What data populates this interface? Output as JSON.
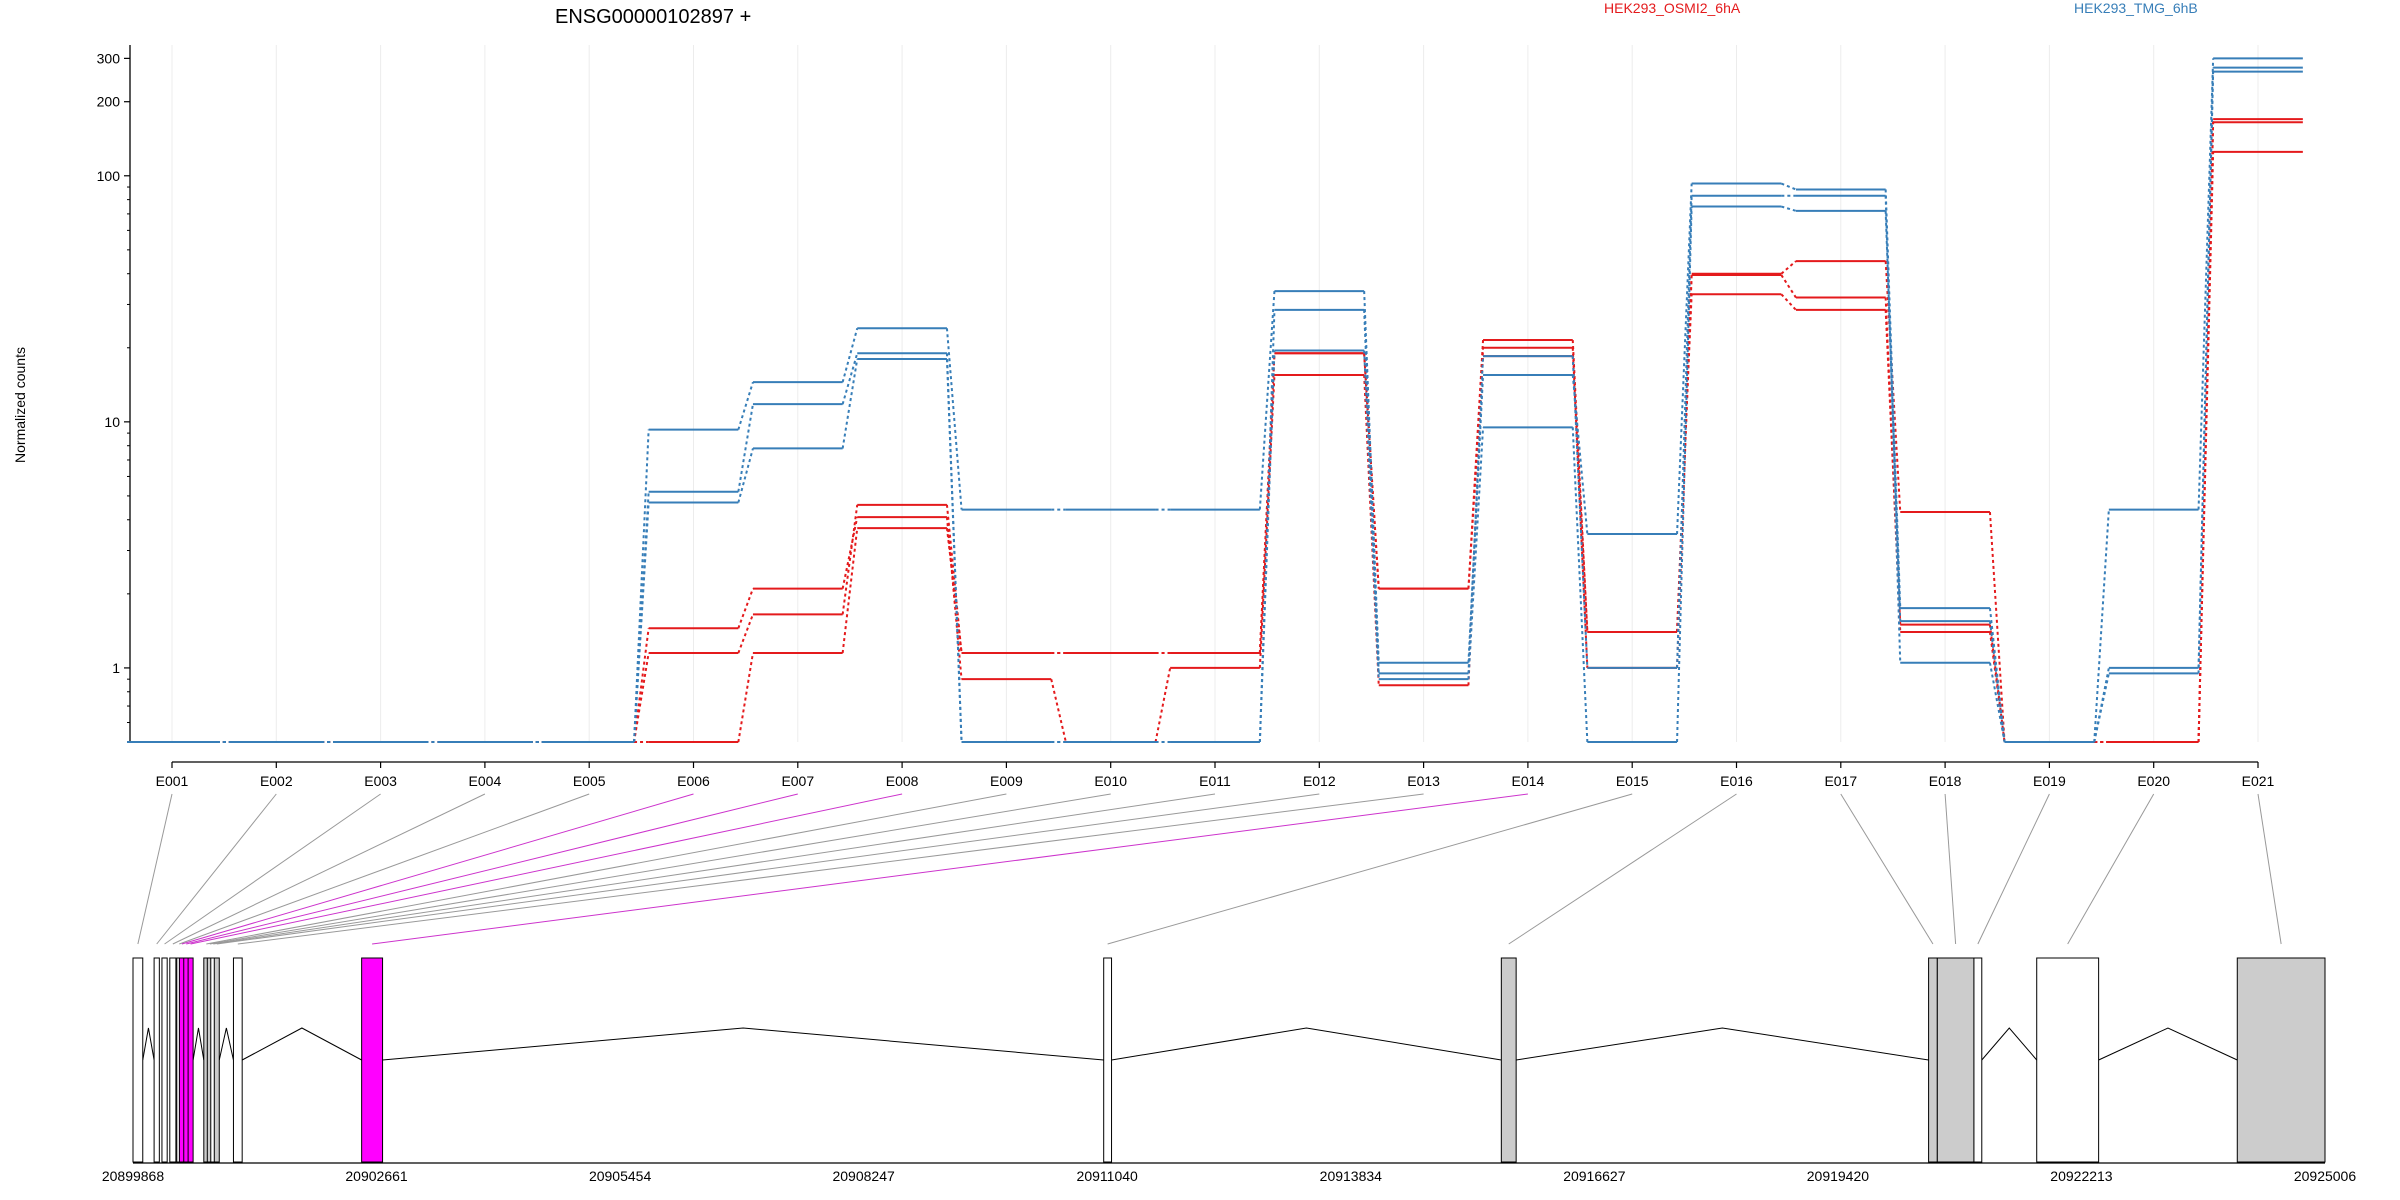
{
  "chart_data": {
    "type": "line",
    "title": "ENSG00000102897 +",
    "ylabel": "Normalized counts",
    "y_scale": "log",
    "y_ticks": [
      1,
      10,
      100,
      200,
      300
    ],
    "y_tick_labels": [
      "1",
      "10",
      "100",
      "200",
      "300"
    ],
    "ylim": [
      0.5,
      340
    ],
    "legend_placement": "top",
    "grid": true,
    "categories": [
      "E001",
      "E002",
      "E003",
      "E004",
      "E005",
      "E006",
      "E007",
      "E008",
      "E009",
      "E010",
      "E011",
      "E012",
      "E013",
      "E014",
      "E015",
      "E016",
      "E017",
      "E018",
      "E019",
      "E020",
      "E021"
    ],
    "series": [
      {
        "name": "HEK293_OSMI2_6hA",
        "color": "#e41a1c",
        "values": [
          0.5,
          0.5,
          0.5,
          0.5,
          0.5,
          1.15,
          1.65,
          4.6,
          1.15,
          1.15,
          1.15,
          19,
          2.1,
          21.5,
          1.4,
          40,
          45,
          4.3,
          0.5,
          0.5,
          170
        ]
      },
      {
        "name": "",
        "color": "#e41a1c",
        "values": [
          0.5,
          0.5,
          0.5,
          0.5,
          0.5,
          1.45,
          2.1,
          4.1,
          0.9,
          0.5,
          1.0,
          15.5,
          0.85,
          20,
          1.0,
          39.5,
          32,
          1.4,
          0.5,
          0.5,
          125
        ]
      },
      {
        "name": "",
        "color": "#e41a1c",
        "values": [
          0.5,
          0.5,
          0.5,
          0.5,
          0.5,
          0.5,
          1.15,
          3.7,
          1.15,
          1.15,
          1.15,
          19,
          2.1,
          18.5,
          1.4,
          33,
          28.5,
          1.5,
          0.5,
          0.5,
          165
        ]
      },
      {
        "name": "HEK293_TMG_6hB",
        "color": "#377eb8",
        "values": [
          0.5,
          0.5,
          0.5,
          0.5,
          0.5,
          9.3,
          14.5,
          24,
          4.4,
          4.4,
          4.4,
          34,
          1.05,
          15.5,
          3.5,
          93,
          88,
          1.75,
          0.5,
          4.4,
          300
        ]
      },
      {
        "name": "",
        "color": "#377eb8",
        "values": [
          0.5,
          0.5,
          0.5,
          0.5,
          0.5,
          5.2,
          11.8,
          19,
          0.5,
          0.5,
          0.5,
          28.5,
          0.95,
          18.5,
          1.0,
          83,
          83,
          1.05,
          0.5,
          1.0,
          275
        ]
      },
      {
        "name": "",
        "color": "#377eb8",
        "values": [
          0.5,
          0.5,
          0.5,
          0.5,
          0.5,
          4.7,
          7.8,
          18,
          0.5,
          0.5,
          0.5,
          19.5,
          0.9,
          9.5,
          0.5,
          75,
          72,
          1.55,
          0.5,
          0.95,
          265
        ]
      }
    ],
    "gene_model": {
      "coordinate_ticks": [
        "20899868",
        "20902661",
        "20905454",
        "20908247",
        "20911040",
        "20913834",
        "20916627",
        "20919420",
        "20922213",
        "20925006"
      ],
      "coord_range": [
        20899868,
        20925006
      ],
      "exons": [
        {
          "label": "E001",
          "start": 20899868,
          "end": 20899980,
          "fill": "#ffffff",
          "highlight": false
        },
        {
          "label": "E002",
          "start": 20900110,
          "end": 20900170,
          "fill": "#ffffff",
          "highlight": false
        },
        {
          "label": "E003",
          "start": 20900200,
          "end": 20900260,
          "fill": "#ffffff",
          "highlight": false
        },
        {
          "label": "E004",
          "start": 20900290,
          "end": 20900360,
          "fill": "#ffffff",
          "highlight": false
        },
        {
          "label": "E005",
          "start": 20900370,
          "end": 20900400,
          "fill": "#ffffff",
          "highlight": false
        },
        {
          "label": "E006",
          "start": 20900400,
          "end": 20900450,
          "fill": "#ff00ff",
          "highlight": true
        },
        {
          "label": "E007",
          "start": 20900450,
          "end": 20900500,
          "fill": "#ff00ff",
          "highlight": true
        },
        {
          "label": "E008",
          "start": 20900500,
          "end": 20900520,
          "fill": "#ff00ff",
          "highlight": true
        },
        {
          "label": "E009",
          "start": 20900680,
          "end": 20900720,
          "fill": "#cccccc",
          "highlight": false
        },
        {
          "label": "E010",
          "start": 20900720,
          "end": 20900760,
          "fill": "#cccccc",
          "highlight": false
        },
        {
          "label": "E011",
          "start": 20900760,
          "end": 20900800,
          "fill": "#ffffff",
          "highlight": false
        },
        {
          "label": "E012",
          "start": 20900800,
          "end": 20900840,
          "fill": "#cccccc",
          "highlight": false
        },
        {
          "label": "E013",
          "start": 20901020,
          "end": 20901120,
          "fill": "#ffffff",
          "highlight": false
        },
        {
          "label": "E014",
          "start": 20902490,
          "end": 20902730,
          "fill": "#ff00ff",
          "highlight": true
        },
        {
          "label": "E015",
          "start": 20911000,
          "end": 20911090,
          "fill": "#ffffff",
          "highlight": false
        },
        {
          "label": "E016",
          "start": 20915560,
          "end": 20915730,
          "fill": "#cccccc",
          "highlight": false
        },
        {
          "label": "E017",
          "start": 20920460,
          "end": 20920560,
          "fill": "#cccccc",
          "highlight": false
        },
        {
          "label": "E018",
          "start": 20920560,
          "end": 20920980,
          "fill": "#cccccc",
          "highlight": false
        },
        {
          "label": "E019",
          "start": 20920980,
          "end": 20921070,
          "fill": "#ffffff",
          "highlight": false
        },
        {
          "label": "E020",
          "start": 20921700,
          "end": 20922410,
          "fill": "#ffffff",
          "highlight": false
        },
        {
          "label": "E021",
          "start": 20924000,
          "end": 20925006,
          "fill": "#cccccc",
          "highlight": false
        }
      ]
    }
  }
}
